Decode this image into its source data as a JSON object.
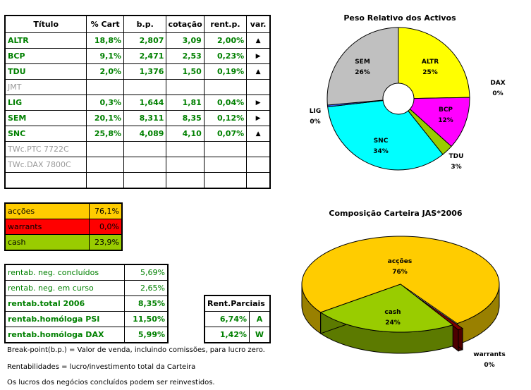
{
  "portfolio": {
    "headers": [
      "Título",
      "% Cart",
      "b.p.",
      "cotação",
      "rent.p.",
      "var."
    ],
    "rows": [
      {
        "titulo": "ALTR",
        "cart": "18,8%",
        "bp": "2,807",
        "cot": "3,09",
        "rent": "2,00%",
        "var": "up",
        "active": true
      },
      {
        "titulo": "BCP",
        "cart": "9,1%",
        "bp": "2,471",
        "cot": "2,53",
        "rent": "0,23%",
        "var": "right",
        "active": true
      },
      {
        "titulo": "TDU",
        "cart": "2,0%",
        "bp": "1,376",
        "cot": "1,50",
        "rent": "0,19%",
        "var": "up",
        "active": true
      },
      {
        "titulo": "JMT",
        "cart": "",
        "bp": "",
        "cot": "",
        "rent": "",
        "var": "",
        "active": false
      },
      {
        "titulo": "LIG",
        "cart": "0,3%",
        "bp": "1,644",
        "cot": "1,81",
        "rent": "0,04%",
        "var": "right",
        "active": true
      },
      {
        "titulo": "SEM",
        "cart": "20,1%",
        "bp": "8,311",
        "cot": "8,35",
        "rent": "0,12%",
        "var": "right",
        "active": true
      },
      {
        "titulo": "SNC",
        "cart": "25,8%",
        "bp": "4,089",
        "cot": "4,10",
        "rent": "0,07%",
        "var": "up",
        "active": true
      },
      {
        "titulo": "TWc.PTC 7722C",
        "cart": "",
        "bp": "",
        "cot": "",
        "rent": "",
        "var": "",
        "active": false
      },
      {
        "titulo": "TWc.DAX 7800C",
        "cart": "",
        "bp": "",
        "cot": "",
        "rent": "",
        "var": "",
        "active": false
      },
      {
        "titulo": "",
        "cart": "",
        "bp": "",
        "cot": "",
        "rent": "",
        "var": "",
        "active": false
      }
    ]
  },
  "allocation": [
    {
      "label": "acções",
      "value": "76,1%",
      "color": "#ffcc00"
    },
    {
      "label": "warrants",
      "value": "0,0%",
      "color": "#ff0000"
    },
    {
      "label": "cash",
      "value": "23,9%",
      "color": "#99cc00"
    }
  ],
  "returns": [
    {
      "label": "rentab. neg. concluídos",
      "value": "5,69%",
      "bold": false
    },
    {
      "label": "rentab. neg. em curso",
      "value": "2,65%",
      "bold": false
    },
    {
      "label": "rentab.total 2006",
      "value": "8,35%",
      "bold": true
    },
    {
      "label": "rentab.homóloga PSI",
      "value": "11,50%",
      "bold": true
    },
    {
      "label": "rentab.homóloga DAX",
      "value": "5,99%",
      "bold": true
    }
  ],
  "partial": {
    "header": "Rent.Parciais",
    "rows": [
      {
        "value": "6,74%",
        "tag": "A"
      },
      {
        "value": "1,42%",
        "tag": "W"
      }
    ]
  },
  "notes": [
    "Break-point(b.p.) = Valor de venda, incluindo comissões, para lucro zero.",
    "Rentabilidades = lucro/investimento total da Carteira",
    "Os lucros dos negócios concluídos podem ser reinvestidos."
  ],
  "icons": {
    "up": "triangle-up-icon",
    "right": "triangle-right-icon"
  },
  "chart_data": [
    {
      "type": "pie",
      "style": "doughnut",
      "title": "Peso Relativo dos Activos",
      "slices": [
        {
          "name": "ALTR",
          "value": 18.8,
          "label": "25%",
          "color": "#ffff00"
        },
        {
          "name": "DAX",
          "value": 0,
          "label": "0%",
          "color": "#ffffff"
        },
        {
          "name": "BCP",
          "value": 9.1,
          "label": "12%",
          "color": "#ff00ff"
        },
        {
          "name": "TDU",
          "value": 2.0,
          "label": "3%",
          "color": "#99cc00"
        },
        {
          "name": "SNC",
          "value": 25.8,
          "label": "34%",
          "color": "#00ffff"
        },
        {
          "name": "LIG",
          "value": 0.3,
          "label": "0%",
          "color": "#3366ff"
        },
        {
          "name": "SEM",
          "value": 20.1,
          "label": "26%",
          "color": "#c0c0c0"
        }
      ]
    },
    {
      "type": "pie",
      "style": "3d",
      "title": "Composição Carteira JAS*2006",
      "slices": [
        {
          "name": "acções",
          "value": 76.1,
          "label": "76%",
          "color": "#ffcc00"
        },
        {
          "name": "warrants",
          "value": 0.0,
          "label": "0%",
          "color": "#800000"
        },
        {
          "name": "cash",
          "value": 23.9,
          "label": "24%",
          "color": "#99cc00"
        }
      ]
    }
  ]
}
